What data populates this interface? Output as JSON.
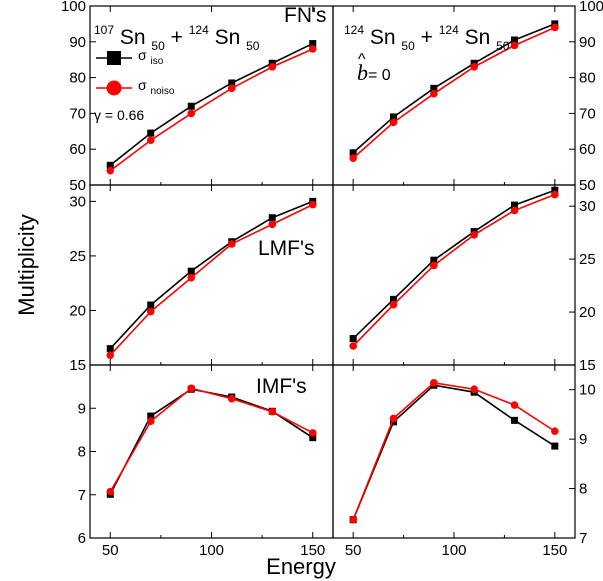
{
  "axes": {
    "xlabel": "Energy",
    "ylabel": "Multiplicity"
  },
  "annotations": {
    "left_system": {
      "a1": "107",
      "el1": "Sn",
      "z1": "50",
      "plus": "+",
      "a2": "124",
      "el2": "Sn",
      "z2": "50"
    },
    "right_system": {
      "a1": "124",
      "el1": "Sn",
      "z1": "50",
      "plus": "+",
      "a2": "124",
      "el2": "Sn",
      "z2": "50"
    },
    "gamma": "γ = 0.66",
    "bhat_symbol": "b",
    "bhat_hat": "^",
    "bhat_rest": " = 0"
  },
  "legend": {
    "placement": "top-left",
    "items": [
      {
        "sym": "σ",
        "sub": "iso",
        "color": "#000000",
        "marker": "square"
      },
      {
        "sym": "σ",
        "sub": "noiso",
        "color": "#ff0000",
        "marker": "circle"
      }
    ]
  },
  "colors": {
    "iso": "#000000",
    "noiso": "#ff0000"
  },
  "chart_data": [
    {
      "type": "line",
      "panel": "top-left",
      "label": "FN's",
      "xlim": [
        40,
        160
      ],
      "ylim": [
        50,
        100
      ],
      "xticks": [
        50,
        100,
        150
      ],
      "yticks": [
        50,
        60,
        70,
        80,
        90,
        100
      ],
      "ytick_side": "left",
      "series": [
        {
          "name": "σiso",
          "x": [
            50,
            70,
            90,
            110,
            130,
            150
          ],
          "y": [
            55.5,
            64.5,
            72,
            78.5,
            84,
            89.5
          ]
        },
        {
          "name": "σnoiso",
          "x": [
            50,
            70,
            90,
            110,
            130,
            150
          ],
          "y": [
            54,
            62.5,
            70,
            77,
            83,
            88
          ]
        }
      ]
    },
    {
      "type": "line",
      "panel": "top-right",
      "label": "",
      "xlim": [
        40,
        160
      ],
      "ylim": [
        50,
        100
      ],
      "xticks": [
        50,
        100,
        150
      ],
      "yticks": [
        50,
        60,
        70,
        80,
        90,
        100
      ],
      "ytick_side": "right",
      "series": [
        {
          "name": "σiso",
          "x": [
            50,
            70,
            90,
            110,
            130,
            150
          ],
          "y": [
            59,
            69,
            77,
            84,
            90.5,
            95
          ]
        },
        {
          "name": "σnoiso",
          "x": [
            50,
            70,
            90,
            110,
            130,
            150
          ],
          "y": [
            57.5,
            67.5,
            75.5,
            83,
            89,
            94
          ]
        }
      ]
    },
    {
      "type": "line",
      "panel": "middle-left",
      "label": "LMF's",
      "xlim": [
        40,
        160
      ],
      "ylim": [
        15,
        31.5
      ],
      "xticks": [
        50,
        100,
        150
      ],
      "yticks": [
        15,
        20,
        25,
        30
      ],
      "ytick_side": "left",
      "series": [
        {
          "name": "σiso",
          "x": [
            50,
            70,
            90,
            110,
            130,
            150
          ],
          "y": [
            16.5,
            20.5,
            23.6,
            26.3,
            28.5,
            30
          ]
        },
        {
          "name": "σnoiso",
          "x": [
            50,
            70,
            90,
            110,
            130,
            150
          ],
          "y": [
            15.9,
            19.9,
            23,
            26.1,
            27.9,
            29.7
          ]
        }
      ]
    },
    {
      "type": "line",
      "panel": "middle-right",
      "label": "",
      "xlim": [
        40,
        160
      ],
      "ylim": [
        15,
        32
      ],
      "xticks": [
        50,
        100,
        150
      ],
      "yticks": [
        15,
        20,
        25,
        30
      ],
      "ytick_side": "right",
      "series": [
        {
          "name": "σiso",
          "x": [
            50,
            70,
            90,
            110,
            130,
            150
          ],
          "y": [
            17.5,
            21.2,
            24.9,
            27.6,
            30.1,
            31.5
          ]
        },
        {
          "name": "σnoiso",
          "x": [
            50,
            70,
            90,
            110,
            130,
            150
          ],
          "y": [
            16.8,
            20.7,
            24.4,
            27.3,
            29.6,
            31.1
          ]
        }
      ]
    },
    {
      "type": "line",
      "panel": "bottom-left",
      "label": "IMF's",
      "xlim": [
        40,
        160
      ],
      "ylim": [
        6,
        10
      ],
      "xticks": [
        50,
        100,
        150
      ],
      "yticks": [
        6,
        7,
        8,
        9
      ],
      "ytick_side": "left",
      "series": [
        {
          "name": "σiso",
          "x": [
            50,
            70,
            90,
            110,
            130,
            150
          ],
          "y": [
            7.01,
            8.82,
            9.44,
            9.26,
            8.93,
            8.32
          ]
        },
        {
          "name": "σnoiso",
          "x": [
            50,
            70,
            90,
            110,
            130,
            150
          ],
          "y": [
            7.07,
            8.7,
            9.46,
            9.22,
            8.92,
            8.43
          ]
        }
      ]
    },
    {
      "type": "line",
      "panel": "bottom-right",
      "label": "",
      "xlim": [
        40,
        160
      ],
      "ylim": [
        7,
        10.5
      ],
      "xticks": [
        50,
        100,
        150
      ],
      "yticks": [
        7,
        8,
        9,
        10
      ],
      "ytick_side": "right",
      "series": [
        {
          "name": "σiso",
          "x": [
            50,
            70,
            90,
            110,
            130,
            150
          ],
          "y": [
            7.37,
            9.35,
            10.09,
            9.95,
            9.38,
            8.86
          ]
        },
        {
          "name": "σnoiso",
          "x": [
            50,
            70,
            90,
            110,
            130,
            150
          ],
          "y": [
            7.37,
            9.42,
            10.14,
            10.01,
            9.69,
            9.16
          ]
        }
      ]
    }
  ]
}
